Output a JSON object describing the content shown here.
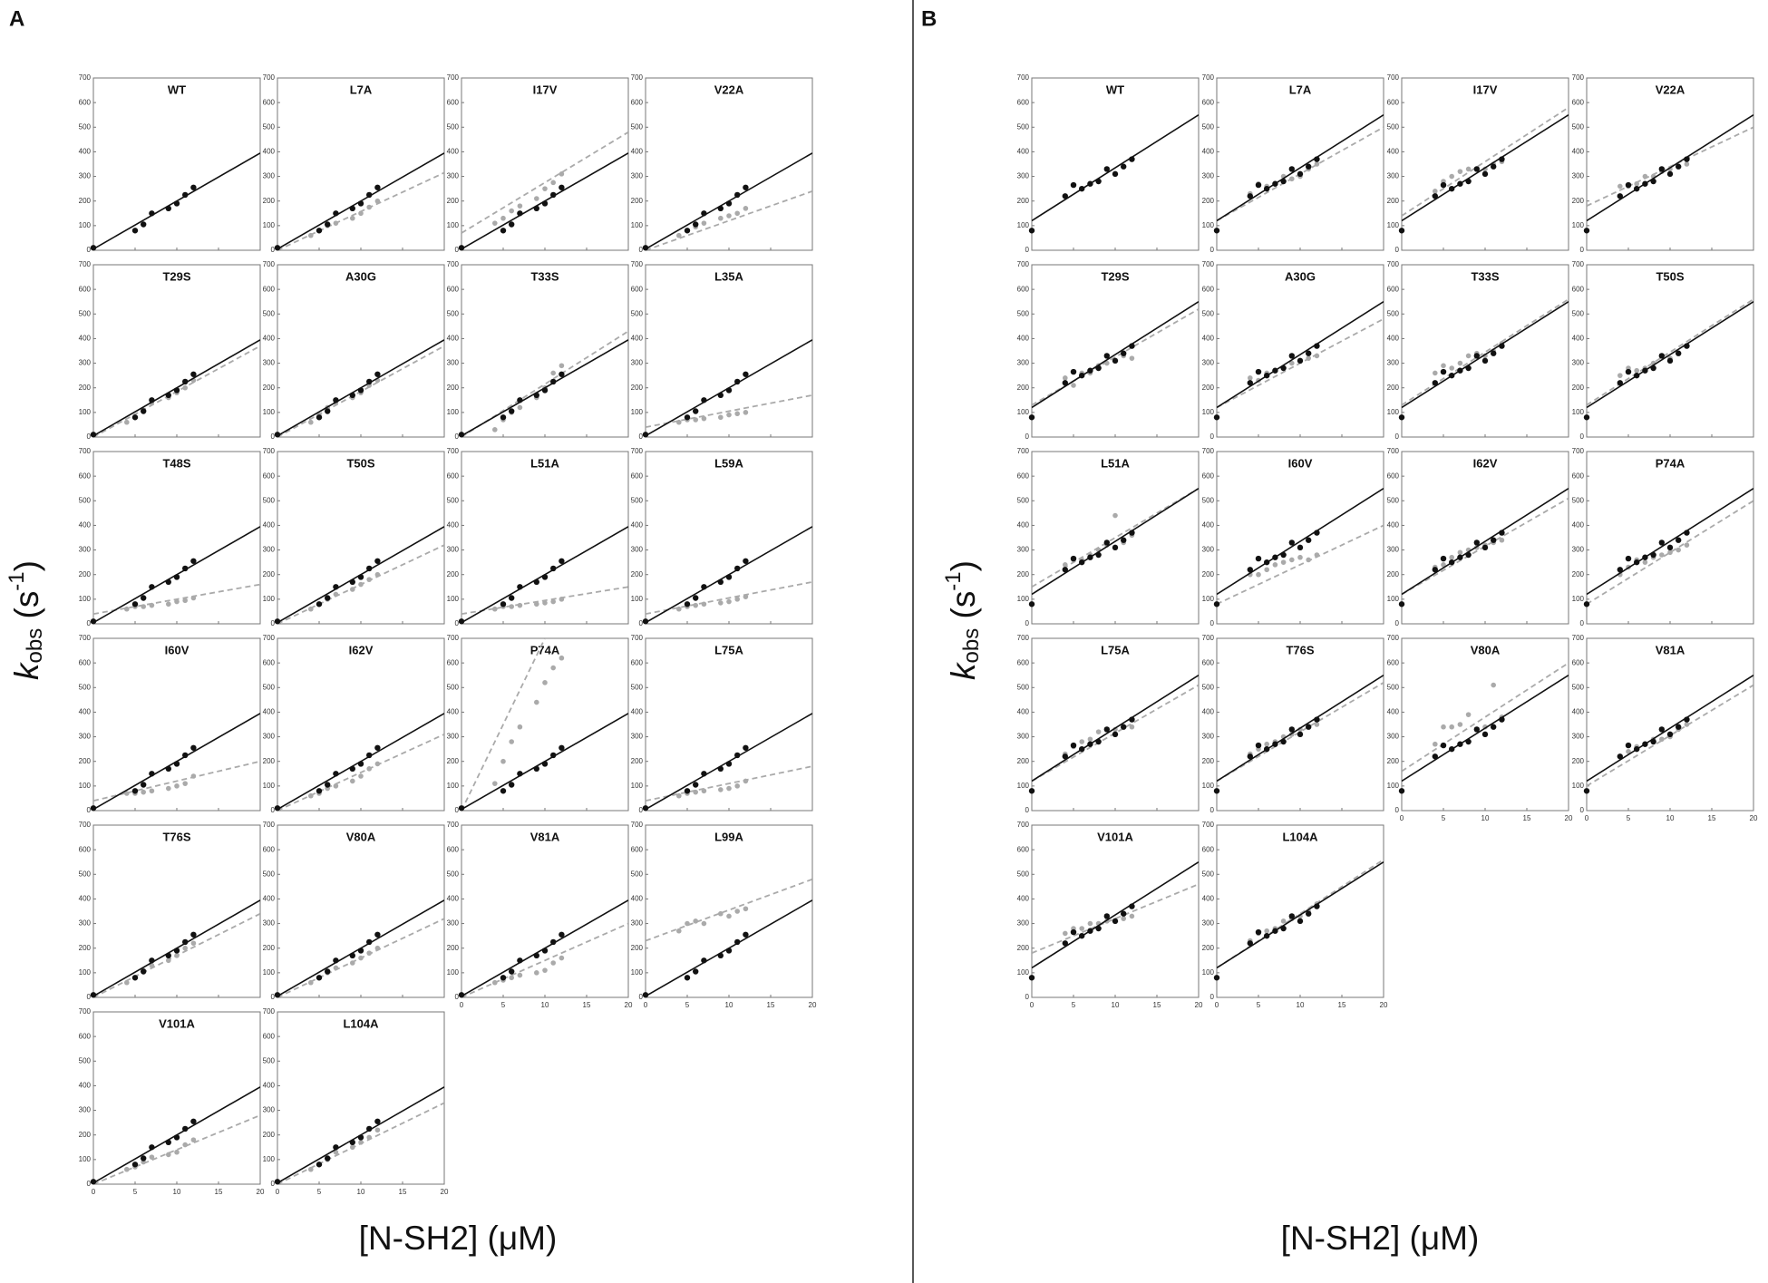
{
  "chart_data": [
    {
      "type": "scatter",
      "panel": "A",
      "x_label": "[N-SH2] (μM)",
      "y_label": {
        "k": "k",
        "sub": "obs",
        "open": " (s",
        "sup": "-1",
        "close": ")"
      },
      "xlim": [
        0,
        20
      ],
      "ylim": [
        0,
        700
      ],
      "xticks": [
        0,
        5,
        10,
        15,
        20
      ],
      "yticks": [
        0,
        100,
        200,
        300,
        400,
        500,
        600,
        700
      ],
      "reference_color": "#111111",
      "mutant_color": "#aaaaaa",
      "reference": {
        "x": [
          0,
          5,
          6,
          7,
          9,
          10,
          11,
          12
        ],
        "values": [
          10,
          80,
          105,
          150,
          170,
          190,
          225,
          255
        ],
        "fit": [
          5,
          395
        ]
      },
      "mutant_x": [
        4,
        5,
        6,
        7,
        9,
        10,
        11,
        12
      ],
      "subplots": [
        {
          "title": "WT"
        },
        {
          "title": "L7A",
          "values": [
            60,
            80,
            100,
            110,
            130,
            150,
            175,
            200
          ],
          "fit": [
            0,
            315
          ]
        },
        {
          "title": "I17V",
          "values": [
            110,
            130,
            160,
            180,
            210,
            250,
            275,
            310
          ],
          "fit": [
            70,
            480
          ]
        },
        {
          "title": "V22A",
          "values": [
            60,
            80,
            95,
            110,
            130,
            140,
            150,
            170
          ],
          "fit": [
            0,
            240
          ]
        },
        {
          "title": "T29S",
          "values": [
            60,
            80,
            110,
            140,
            160,
            180,
            200,
            230
          ],
          "fit": [
            0,
            370
          ]
        },
        {
          "title": "A30G",
          "values": [
            60,
            90,
            120,
            140,
            160,
            180,
            210,
            230
          ],
          "fit": [
            0,
            370
          ]
        },
        {
          "title": "T33S",
          "values": [
            30,
            70,
            100,
            120,
            160,
            200,
            260,
            290
          ],
          "fit": [
            0,
            430
          ]
        },
        {
          "title": "L35A",
          "values": [
            60,
            70,
            70,
            75,
            80,
            90,
            95,
            100
          ],
          "fit": [
            40,
            170
          ]
        },
        {
          "title": "T48S",
          "values": [
            60,
            70,
            70,
            75,
            80,
            90,
            95,
            105
          ],
          "fit": [
            40,
            160
          ]
        },
        {
          "title": "T50S",
          "values": [
            60,
            80,
            100,
            120,
            140,
            160,
            180,
            200
          ],
          "fit": [
            0,
            320
          ]
        },
        {
          "title": "L51A",
          "values": [
            60,
            70,
            70,
            75,
            80,
            85,
            90,
            100
          ],
          "fit": [
            40,
            150
          ]
        },
        {
          "title": "L59A",
          "values": [
            60,
            70,
            75,
            80,
            85,
            90,
            100,
            110
          ],
          "fit": [
            40,
            170
          ]
        },
        {
          "title": "I60V",
          "values": [
            70,
            70,
            75,
            80,
            90,
            100,
            110,
            140
          ],
          "fit": [
            40,
            200
          ]
        },
        {
          "title": "I62V",
          "values": [
            60,
            70,
            90,
            100,
            120,
            140,
            170,
            190
          ],
          "fit": [
            0,
            310
          ]
        },
        {
          "title": "P74A",
          "values": [
            110,
            200,
            280,
            340,
            440,
            520,
            580,
            620
          ],
          "fit": [
            0,
            1400
          ]
        },
        {
          "title": "L75A",
          "values": [
            60,
            70,
            75,
            80,
            85,
            90,
            100,
            120
          ],
          "fit": [
            40,
            180
          ]
        },
        {
          "title": "T76S",
          "values": [
            60,
            80,
            110,
            130,
            150,
            170,
            200,
            220
          ],
          "fit": [
            0,
            340
          ]
        },
        {
          "title": "V80A",
          "values": [
            60,
            80,
            100,
            120,
            140,
            160,
            180,
            200
          ],
          "fit": [
            0,
            320
          ]
        },
        {
          "title": "V81A",
          "values": [
            60,
            70,
            80,
            90,
            100,
            110,
            140,
            160
          ],
          "fit": [
            0,
            300
          ]
        },
        {
          "title": "L99A",
          "values": [
            270,
            300,
            310,
            300,
            340,
            330,
            350,
            360
          ],
          "fit": [
            230,
            480
          ]
        },
        {
          "title": "V101A",
          "values": [
            60,
            70,
            90,
            110,
            120,
            130,
            160,
            180
          ],
          "fit": [
            0,
            280
          ]
        },
        {
          "title": "L104A",
          "values": [
            60,
            80,
            100,
            130,
            150,
            170,
            190,
            220
          ],
          "fit": [
            0,
            330
          ]
        }
      ]
    },
    {
      "type": "scatter",
      "panel": "B",
      "x_label": "[N-SH2] (μM)",
      "y_label": {
        "k": "k",
        "sub": "obs",
        "open": " (s",
        "sup": "-1",
        "close": ")"
      },
      "xlim": [
        0,
        20
      ],
      "ylim": [
        0,
        700
      ],
      "xticks": [
        0,
        5,
        10,
        15,
        20
      ],
      "yticks": [
        0,
        100,
        200,
        300,
        400,
        500,
        600,
        700
      ],
      "reference_color": "#111111",
      "mutant_color": "#aaaaaa",
      "reference": {
        "x": [
          0,
          4,
          5,
          6,
          7,
          8,
          9,
          10,
          11,
          12
        ],
        "values": [
          80,
          220,
          265,
          250,
          270,
          280,
          330,
          310,
          340,
          370
        ],
        "fit": [
          120,
          550
        ]
      },
      "mutant_x": [
        4,
        5,
        6,
        7,
        8,
        9,
        10,
        11,
        12
      ],
      "subplots": [
        {
          "title": "WT"
        },
        {
          "title": "L7A",
          "values": [
            230,
            270,
            260,
            270,
            300,
            290,
            300,
            330,
            350
          ],
          "fit": [
            120,
            500
          ]
        },
        {
          "title": "I17V",
          "values": [
            240,
            280,
            300,
            320,
            330,
            330,
            330,
            350,
            360
          ],
          "fit": [
            140,
            580
          ]
        },
        {
          "title": "V22A",
          "values": [
            260,
            260,
            270,
            300,
            300,
            320,
            330,
            340,
            350
          ],
          "fit": [
            180,
            500
          ]
        },
        {
          "title": "T29S",
          "values": [
            240,
            210,
            260,
            260,
            290,
            300,
            310,
            330,
            320
          ],
          "fit": [
            130,
            520
          ]
        },
        {
          "title": "A30G",
          "values": [
            240,
            230,
            260,
            270,
            280,
            300,
            310,
            320,
            330
          ],
          "fit": [
            120,
            480
          ]
        },
        {
          "title": "T33S",
          "values": [
            260,
            290,
            280,
            300,
            330,
            340,
            330,
            350,
            380
          ],
          "fit": [
            130,
            560
          ]
        },
        {
          "title": "T50S",
          "values": [
            250,
            280,
            270,
            280,
            300,
            330,
            320,
            340,
            370
          ],
          "fit": [
            130,
            560
          ]
        },
        {
          "title": "L51A",
          "values": [
            240,
            260,
            260,
            280,
            300,
            320,
            440,
            330,
            360
          ],
          "fit": [
            150,
            550
          ]
        },
        {
          "title": "I60V",
          "values": [
            200,
            200,
            220,
            240,
            250,
            260,
            270,
            260,
            280
          ],
          "fit": [
            80,
            400
          ]
        },
        {
          "title": "I62V",
          "values": [
            230,
            240,
            270,
            290,
            300,
            310,
            320,
            330,
            340
          ],
          "fit": [
            120,
            510
          ]
        },
        {
          "title": "P74A",
          "values": [
            200,
            230,
            260,
            250,
            270,
            280,
            290,
            300,
            320
          ],
          "fit": [
            80,
            500
          ]
        },
        {
          "title": "L75A",
          "values": [
            230,
            260,
            280,
            290,
            320,
            330,
            330,
            340,
            340
          ],
          "fit": [
            120,
            510
          ]
        },
        {
          "title": "T76S",
          "values": [
            230,
            250,
            270,
            280,
            300,
            310,
            330,
            340,
            350
          ],
          "fit": [
            120,
            520
          ]
        },
        {
          "title": "V80A",
          "values": [
            270,
            340,
            340,
            350,
            390,
            330,
            340,
            510,
            380
          ],
          "fit": [
            160,
            600
          ]
        },
        {
          "title": "V81A",
          "values": [
            220,
            240,
            260,
            270,
            290,
            290,
            300,
            330,
            350
          ],
          "fit": [
            100,
            510
          ]
        },
        {
          "title": "V101A",
          "values": [
            260,
            280,
            280,
            300,
            300,
            310,
            310,
            320,
            330
          ],
          "fit": [
            180,
            460
          ]
        },
        {
          "title": "L104A",
          "values": [
            230,
            260,
            270,
            280,
            310,
            320,
            330,
            350,
            380
          ],
          "fit": [
            120,
            560
          ]
        }
      ]
    }
  ]
}
